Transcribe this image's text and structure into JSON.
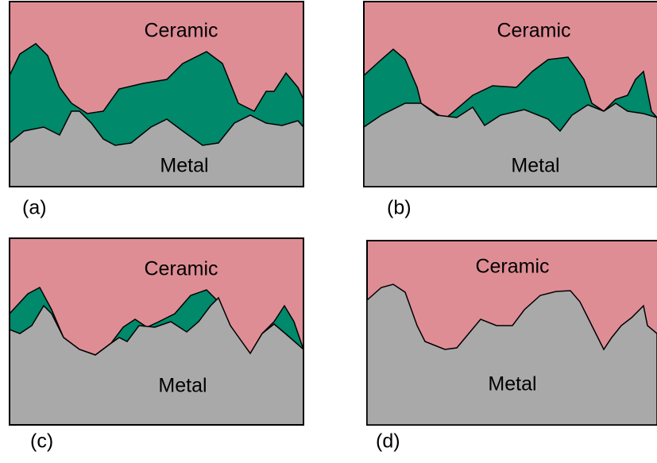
{
  "panels": [
    {
      "caption": "(a)",
      "top_label": "Ceramic",
      "bottom_label": "Metal"
    },
    {
      "caption": "(b)",
      "top_label": "Ceramic",
      "bottom_label": "Metal"
    },
    {
      "caption": "(c)",
      "top_label": "Ceramic",
      "bottom_label": "Metal"
    },
    {
      "caption": "(d)",
      "top_label": "Ceramic",
      "bottom_label": "Metal"
    }
  ]
}
